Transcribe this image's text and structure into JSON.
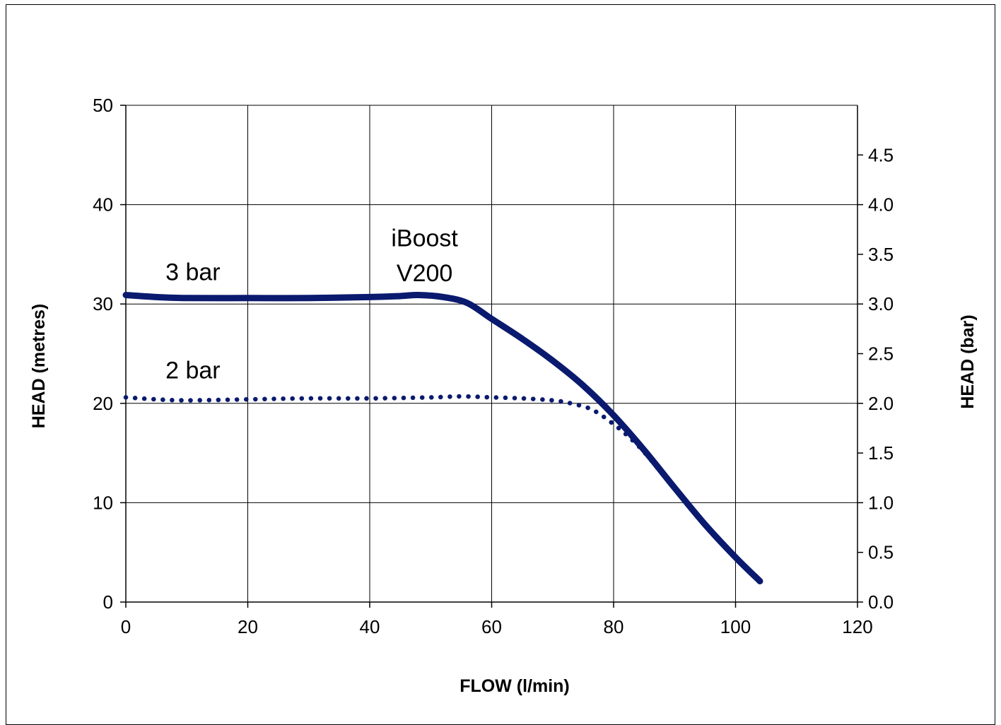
{
  "chart_data": {
    "type": "line",
    "title": "",
    "xlabel": "FLOW (l/min)",
    "ylabel": "HEAD (metres)",
    "y2label": "HEAD (bar)",
    "xlim": [
      0,
      120
    ],
    "ylim": [
      0,
      50
    ],
    "y2lim": [
      0,
      5
    ],
    "x_ticks": [
      "0",
      "20",
      "40",
      "60",
      "80",
      "100",
      "120"
    ],
    "y_ticks": [
      "0",
      "10",
      "20",
      "30",
      "40",
      "50"
    ],
    "y2_ticks": [
      "0.0",
      "0.5",
      "1.0",
      "1.5",
      "2.0",
      "2.5",
      "3.0",
      "3.5",
      "4.0",
      "4.5"
    ],
    "grid": true,
    "line_color": "#0a1a6e",
    "annotations": [
      {
        "text": "3 bar",
        "x": 11,
        "y": 32.4
      },
      {
        "text": "iBoost",
        "x": 49,
        "y": 35.8
      },
      {
        "text": "V200",
        "x": 49,
        "y": 32.3
      },
      {
        "text": "2 bar",
        "x": 11,
        "y": 22.5
      }
    ],
    "series": [
      {
        "style": "solid",
        "x": [
          0,
          5,
          10,
          20,
          30,
          40,
          45,
          48,
          52,
          56,
          60,
          65,
          70,
          75,
          80,
          85,
          90,
          95,
          100,
          104
        ],
        "y": [
          30.9,
          30.7,
          30.6,
          30.6,
          30.6,
          30.7,
          30.8,
          30.9,
          30.7,
          30.1,
          28.5,
          26.5,
          24.3,
          21.8,
          18.8,
          15.3,
          11.5,
          7.8,
          4.5,
          2.1
        ]
      },
      {
        "style": "dotted",
        "x": [
          0,
          5,
          10,
          20,
          30,
          40,
          50,
          55,
          60,
          65,
          70,
          73,
          76,
          78,
          80,
          82,
          85,
          90,
          95,
          100,
          104
        ],
        "y": [
          20.6,
          20.4,
          20.3,
          20.4,
          20.5,
          20.5,
          20.6,
          20.7,
          20.6,
          20.5,
          20.3,
          20.0,
          19.5,
          18.8,
          17.9,
          16.9,
          15.1,
          11.4,
          7.8,
          4.5,
          2.1
        ]
      }
    ]
  }
}
